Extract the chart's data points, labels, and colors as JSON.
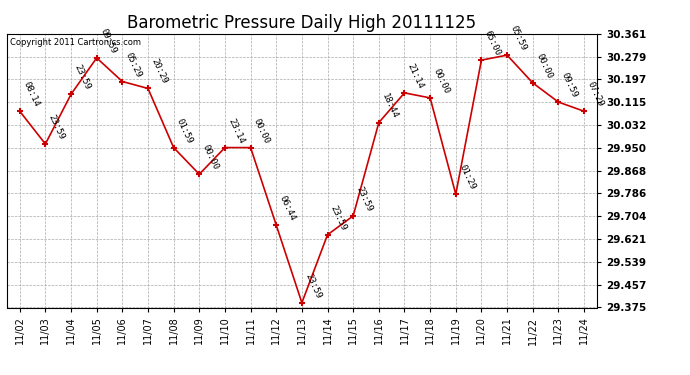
{
  "title": "Barometric Pressure Daily High 20111125",
  "copyright": "Copyright 2011 Cartronics.com",
  "dates": [
    "11/02",
    "11/03",
    "11/04",
    "11/05",
    "11/06",
    "11/07",
    "11/08",
    "11/09",
    "11/10",
    "11/11",
    "11/12",
    "11/13",
    "11/14",
    "11/15",
    "11/16",
    "11/17",
    "11/18",
    "11/19",
    "11/20",
    "11/21",
    "11/22",
    "11/23",
    "11/24"
  ],
  "values": [
    30.082,
    29.964,
    30.143,
    30.274,
    30.189,
    30.164,
    29.951,
    29.855,
    29.951,
    29.951,
    29.672,
    29.392,
    29.637,
    29.705,
    30.041,
    30.148,
    30.13,
    29.783,
    30.266,
    30.284,
    30.184,
    30.115,
    30.082
  ],
  "annotations": [
    "08:14",
    "23:59",
    "23:59",
    "09:59",
    "05:29",
    "20:29",
    "01:59",
    "00:00",
    "23:14",
    "00:00",
    "06:44",
    "23:59",
    "23:59",
    "23:59",
    "18:44",
    "21:14",
    "00:00",
    "01:29",
    "65:00",
    "05:59",
    "00:00",
    "09:59",
    "07:29"
  ],
  "yticks": [
    29.375,
    29.457,
    29.539,
    29.621,
    29.704,
    29.786,
    29.868,
    29.95,
    30.032,
    30.115,
    30.197,
    30.279,
    30.361
  ],
  "line_color": "#cc0000",
  "marker_color": "#cc0000",
  "grid_color": "#aaaaaa",
  "bg_color": "#ffffff",
  "plot_bg_color": "#ffffff",
  "title_fontsize": 12,
  "annotation_fontsize": 6.5,
  "ylim_min": 29.375,
  "ylim_max": 30.361
}
